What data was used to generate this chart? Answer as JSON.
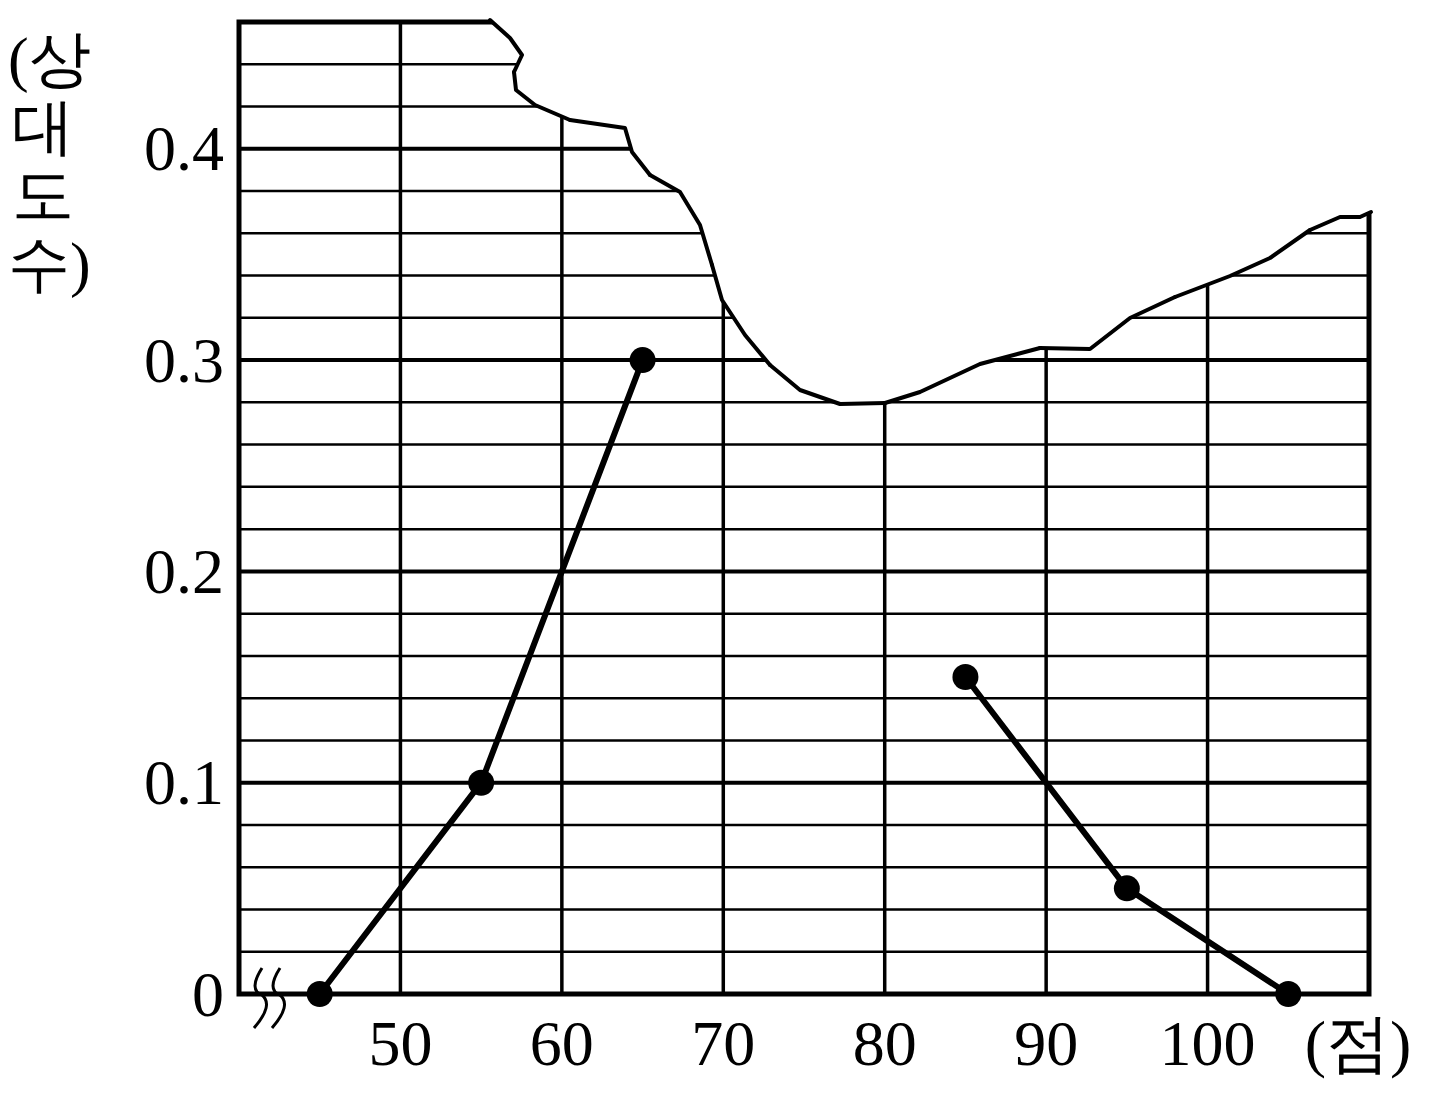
{
  "chart_data": {
    "type": "line",
    "xlabel": "(점)",
    "ylabel": "(상대도수)",
    "x": [
      45,
      55,
      65,
      75,
      85,
      95,
      105
    ],
    "series": [
      {
        "color": "#000000",
        "values": [
          0,
          0.1,
          0.3,
          null,
          0.15,
          0.05,
          0
        ]
      }
    ],
    "xlim": [
      40,
      110
    ],
    "ylim": [
      0,
      0.46
    ],
    "xticks": [
      50,
      60,
      70,
      80,
      90,
      100
    ],
    "yticks": [
      0,
      {
        "value": 0.02,
        "label": null
      },
      {
        "value": 0.04,
        "label": null
      },
      {
        "value": 0.06,
        "label": null
      },
      {
        "value": 0.08,
        "label": null
      },
      0.1,
      {
        "value": 0.12,
        "label": null
      },
      {
        "value": 0.14,
        "label": null
      },
      {
        "value": 0.16,
        "label": null
      },
      {
        "value": 0.18,
        "label": null
      },
      0.2,
      {
        "value": 0.22,
        "label": null
      },
      {
        "value": 0.24,
        "label": null
      },
      {
        "value": 0.26,
        "label": null
      },
      {
        "value": 0.28,
        "label": null
      },
      0.3,
      {
        "value": 0.32,
        "label": null
      },
      {
        "value": 0.34,
        "label": null
      },
      {
        "value": 0.36,
        "label": null
      },
      {
        "value": 0.38,
        "label": null
      },
      0.4,
      {
        "value": 0.42,
        "label": null
      },
      {
        "value": 0.44,
        "label": null
      }
    ],
    "grid": true,
    "marker": "circle",
    "line_style": "solid"
  }
}
